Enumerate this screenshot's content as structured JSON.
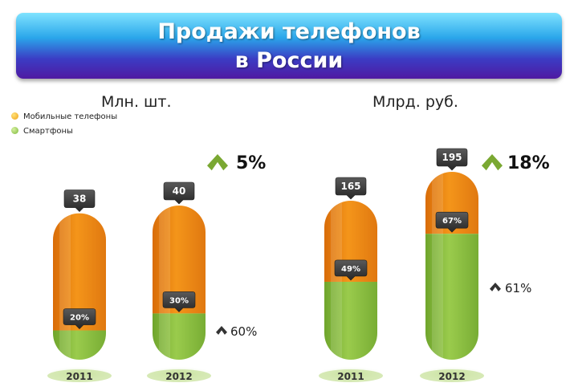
{
  "title_line1": "Продажи телефонов",
  "title_line2": "в России",
  "legend": [
    {
      "label": "Мобильные телефоны",
      "color": "#f0a015"
    },
    {
      "label": "Смартфоны",
      "color": "#7cb83a"
    }
  ],
  "colors": {
    "mobile": "#ee8a12",
    "smart": "#8cbf42",
    "arrow": "#7aa832",
    "badge": "#333333"
  },
  "chart_data": [
    {
      "type": "bar",
      "title": "Млн. шт.",
      "categories": [
        "2011",
        "2012"
      ],
      "series": [
        {
          "name": "Мобильные телефоны",
          "values": [
            38,
            40
          ]
        },
        {
          "name": "Смартфоны",
          "share_labels": [
            "20%",
            "30%"
          ]
        }
      ],
      "total_labels": [
        "38",
        "40"
      ],
      "growth_total": "5%",
      "growth_smart": "60%"
    },
    {
      "type": "bar",
      "title": "Млрд. руб.",
      "categories": [
        "2011",
        "2012"
      ],
      "series": [
        {
          "name": "Мобильные телефоны",
          "values": [
            165,
            195
          ]
        },
        {
          "name": "Смартфоны",
          "share_labels": [
            "49%",
            "67%"
          ]
        }
      ],
      "total_labels": [
        "165",
        "195"
      ],
      "growth_total": "18%",
      "growth_smart": "61%"
    }
  ]
}
